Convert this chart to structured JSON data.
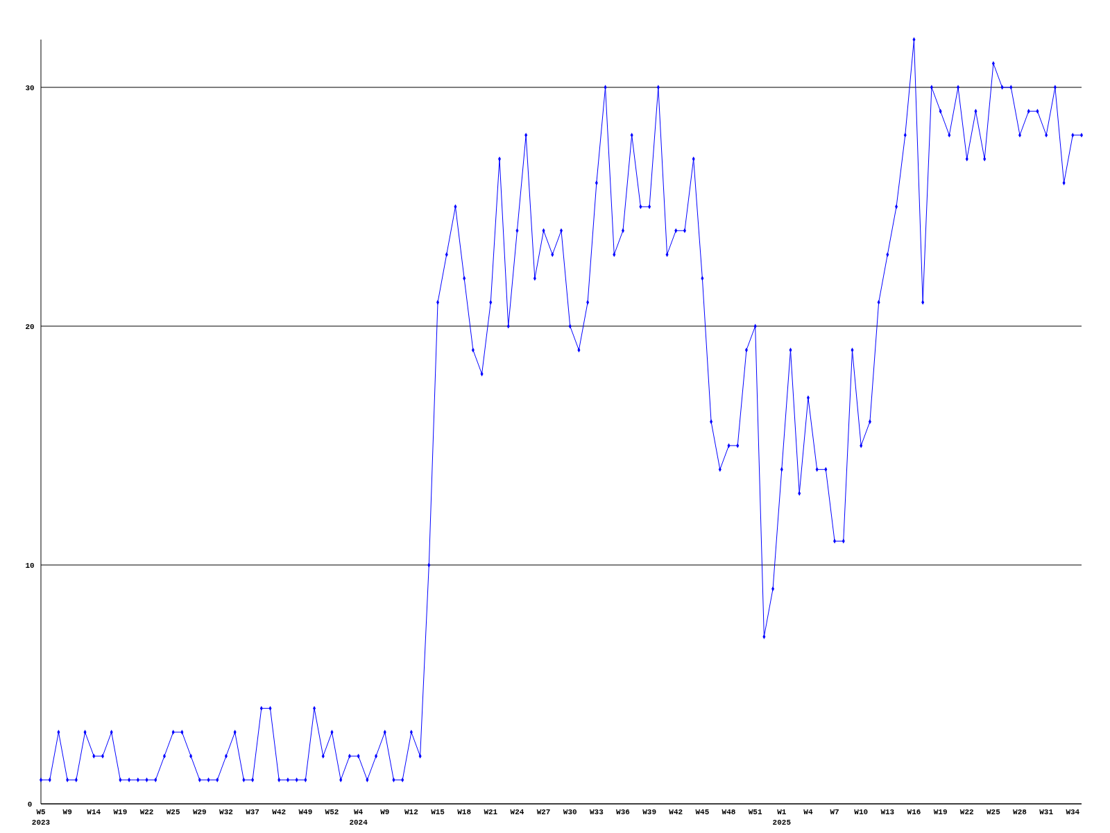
{
  "chart_data": {
    "type": "line",
    "categories": [
      "W5\n2023",
      null,
      null,
      "W9",
      null,
      null,
      "W14",
      null,
      null,
      "W19",
      null,
      null,
      "W22",
      null,
      null,
      "W25",
      null,
      null,
      "W29",
      null,
      null,
      "W32",
      null,
      null,
      "W37",
      null,
      null,
      "W42",
      null,
      null,
      "W49",
      null,
      null,
      "W52",
      null,
      null,
      "W4\n2024",
      null,
      null,
      "W9",
      null,
      null,
      "W12",
      null,
      null,
      "W15",
      null,
      null,
      "W18",
      null,
      null,
      "W21",
      null,
      null,
      "W24",
      null,
      null,
      "W27",
      null,
      null,
      "W30",
      null,
      null,
      "W33",
      null,
      null,
      "W36",
      null,
      null,
      "W39",
      null,
      null,
      "W42",
      null,
      null,
      "W45",
      null,
      null,
      "W48",
      null,
      null,
      "W51",
      null,
      null,
      "W1\n2025",
      null,
      null,
      "W4",
      null,
      null,
      "W7",
      null,
      null,
      "W10",
      null,
      null,
      "W13",
      null,
      null,
      "W16",
      null,
      null,
      "W19",
      null,
      null,
      "W22",
      null,
      null,
      "W25",
      null,
      null,
      "W28",
      null,
      null,
      "W31",
      null,
      null,
      "W34",
      null
    ],
    "series": [
      {
        "color": "#0000ff",
        "values": [
          1,
          1,
          3,
          1,
          1,
          3,
          2,
          2,
          3,
          1,
          1,
          1,
          1,
          1,
          2,
          3,
          3,
          2,
          1,
          1,
          1,
          2,
          3,
          1,
          1,
          4,
          4,
          1,
          1,
          1,
          1,
          4,
          2,
          3,
          1,
          2,
          2,
          1,
          2,
          3,
          1,
          1,
          3,
          2,
          10,
          21,
          23,
          25,
          22,
          19,
          18,
          21,
          27,
          20,
          24,
          28,
          22,
          24,
          23,
          24,
          20,
          19,
          21,
          26,
          30,
          23,
          24,
          28,
          25,
          25,
          30,
          23,
          24,
          24,
          27,
          22,
          16,
          14,
          15,
          15,
          19,
          20,
          7,
          9,
          14,
          19,
          13,
          17,
          14,
          14,
          11,
          11,
          19,
          15,
          16,
          21,
          23,
          25,
          28,
          32,
          21,
          30,
          29,
          28,
          30,
          27,
          29,
          27,
          31,
          30,
          30,
          28,
          29,
          29,
          28,
          30,
          26,
          28,
          28
        ]
      }
    ],
    "ylim": [
      0,
      32
    ],
    "yticks": [
      0,
      10,
      20,
      30
    ],
    "grid": "y",
    "marker": "diamond",
    "line_style": "solid"
  }
}
